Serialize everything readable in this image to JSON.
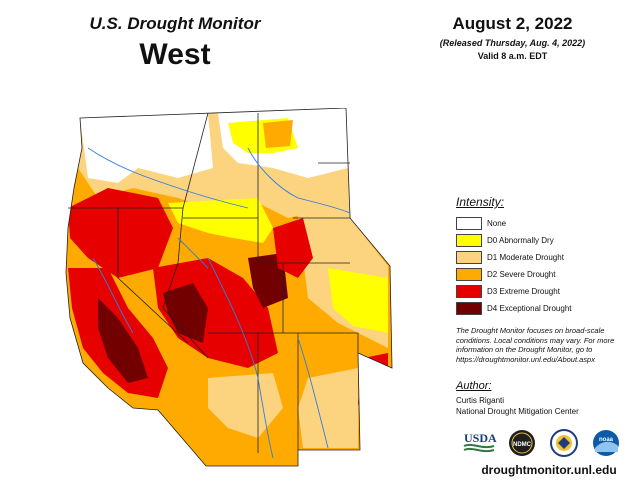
{
  "header": {
    "subtitle": "U.S. Drought Monitor",
    "region": "West",
    "date": "August 2, 2022",
    "released": "(Released Thursday, Aug. 4, 2022)",
    "valid": "Valid 8 a.m. EDT"
  },
  "legend": {
    "title": "Intensity:",
    "items": [
      {
        "label": "None",
        "color": "#ffffff"
      },
      {
        "label": "D0 Abnormally Dry",
        "color": "#ffff00"
      },
      {
        "label": "D1 Moderate Drought",
        "color": "#fcd37f"
      },
      {
        "label": "D2 Severe Drought",
        "color": "#ffaa00"
      },
      {
        "label": "D3 Extreme Drought",
        "color": "#e60000"
      },
      {
        "label": "D4 Exceptional Drought",
        "color": "#730000"
      }
    ]
  },
  "note": "The Drought Monitor focuses on broad-scale conditions. Local conditions may vary. For more information on the Drought Monitor, go to https://droughtmonitor.unl.edu/About.aspx",
  "author": {
    "title": "Author:",
    "name": "Curtis Riganti",
    "org": "National Drought Mitigation Center"
  },
  "logos": [
    {
      "name": "usda-logo",
      "text": "USDA"
    },
    {
      "name": "ndmc-logo",
      "text": "NDMC"
    },
    {
      "name": "doc-seal-logo",
      "text": ""
    },
    {
      "name": "noaa-logo",
      "text": "noaa"
    }
  ],
  "url": "droughtmonitor.unl.edu"
}
